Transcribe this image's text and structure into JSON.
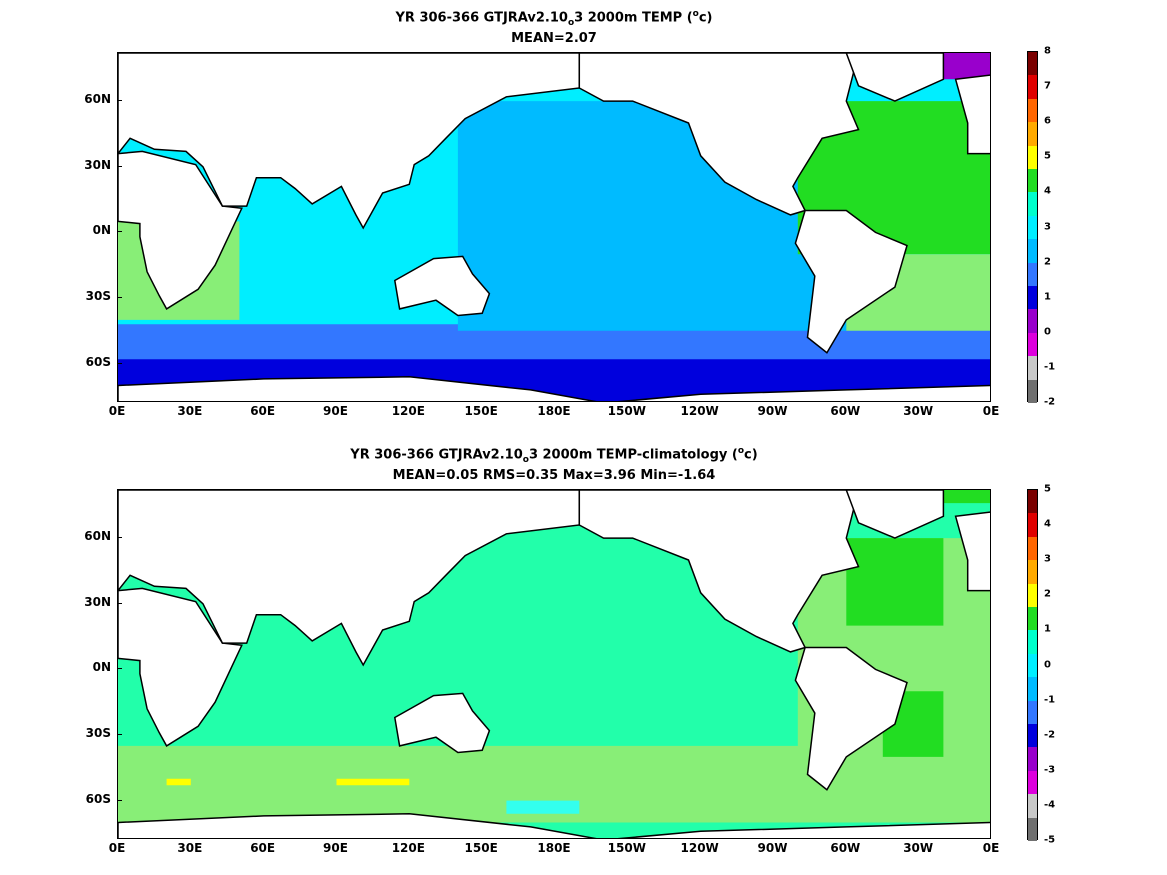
{
  "chart_data": [
    {
      "type": "heatmap",
      "title": "YR 306-366 GTJRAv2.10",
      "title_subscript": "o",
      "title_suffix": "3 2000m TEMP (",
      "title_sup": "o",
      "title_end": "c)",
      "subtitle": "MEAN=2.07",
      "xticks": [
        "0E",
        "30E",
        "60E",
        "90E",
        "120E",
        "150E",
        "180E",
        "150W",
        "120W",
        "90W",
        "60W",
        "30W",
        "0E"
      ],
      "yticks": [
        "60N",
        "30N",
        "0N",
        "30S",
        "60S"
      ],
      "colorbar": {
        "labels": [
          "8",
          "7",
          "6",
          "5",
          "4",
          "3",
          "2",
          "1",
          "0",
          "-1",
          "-2"
        ],
        "colors": [
          "#7a0000",
          "#e00000",
          "#ff3b00",
          "#e07020",
          "#ffa000",
          "#ffee00",
          "#11dd11",
          "#00ff88",
          "#33ffee",
          "#00c0ff",
          "#2277ff",
          "#0000ee",
          "#8800cc",
          "#cc00cc",
          "#c8c8c8",
          "#707070"
        ],
        "bands": [
          {
            "color": "#7a0000"
          },
          {
            "color": "#e00000"
          },
          {
            "color": "#ff6600"
          },
          {
            "color": "#ffaa00"
          },
          {
            "color": "#ffff00"
          },
          {
            "color": "#22dd22"
          },
          {
            "color": "#00ffcc"
          },
          {
            "color": "#00eeff"
          },
          {
            "color": "#00bbff"
          },
          {
            "color": "#3377ff"
          },
          {
            "color": "#0000dd"
          },
          {
            "color": "#9900cc"
          },
          {
            "color": "#dd00dd"
          },
          {
            "color": "#c8c8c8"
          },
          {
            "color": "#707070"
          }
        ]
      }
    },
    {
      "type": "heatmap",
      "title": "YR 306-366 GTJRAv2.10",
      "title_subscript": "o",
      "title_suffix": "3 2000m TEMP-climatology (",
      "title_sup": "o",
      "title_end": "c)",
      "subtitle": "MEAN=0.05   RMS=0.35   Max=3.96   Min=-1.64",
      "xticks": [
        "0E",
        "30E",
        "60E",
        "90E",
        "120E",
        "150E",
        "180E",
        "150W",
        "120W",
        "90W",
        "60W",
        "30W",
        "0E"
      ],
      "yticks": [
        "60N",
        "30N",
        "0N",
        "30S",
        "60S"
      ],
      "colorbar": {
        "labels": [
          "5",
          "4",
          "3",
          "2",
          "1",
          "0",
          "-1",
          "-2",
          "-3",
          "-4",
          "-5"
        ]
      }
    }
  ]
}
